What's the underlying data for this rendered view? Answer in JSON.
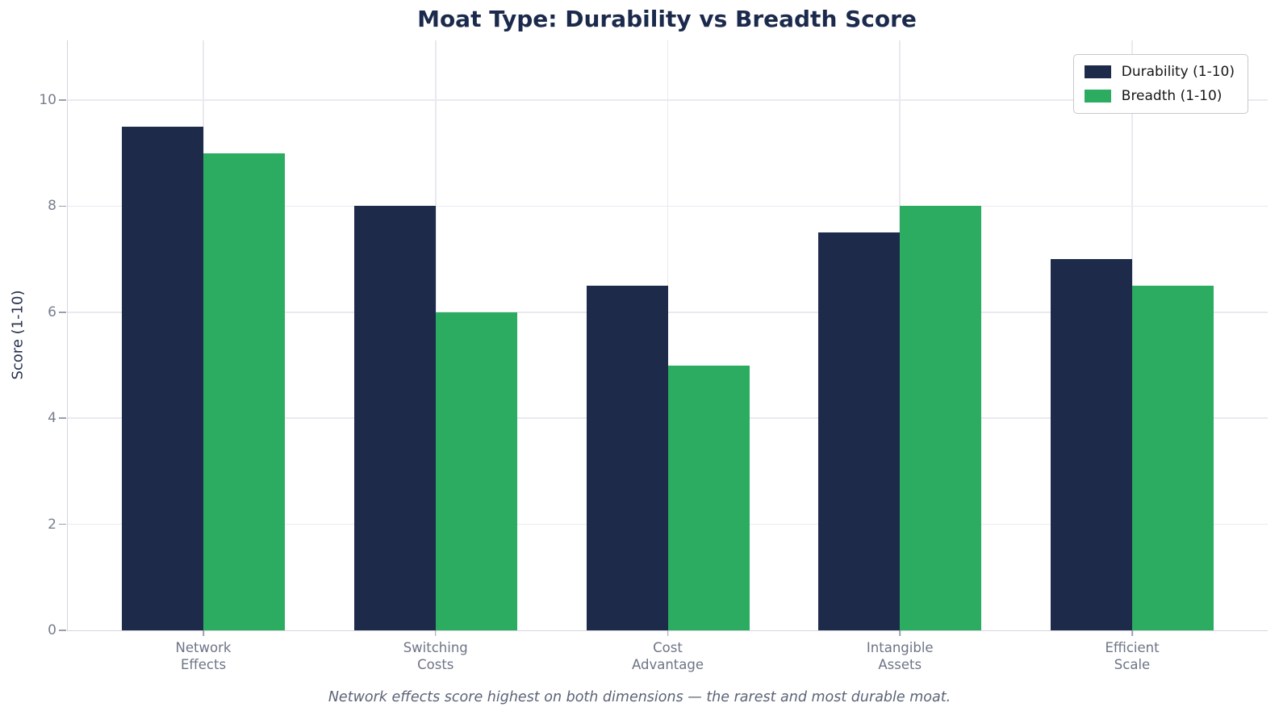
{
  "chart_data": {
    "type": "bar",
    "title": "Moat Type: Durability vs Breadth Score",
    "ylabel": "Score (1-10)",
    "xlabel": "",
    "caption": "Network effects score highest on both dimensions — the rarest and most durable moat.",
    "categories": [
      "Network\nEffects",
      "Switching\nCosts",
      "Cost\nAdvantage",
      "Intangible\nAssets",
      "Efficient\nScale"
    ],
    "series": [
      {
        "name": "Durability (1-10)",
        "color": "#1d2a4a",
        "values": [
          9.5,
          8,
          6.5,
          7.5,
          7
        ]
      },
      {
        "name": "Breadth (1-10)",
        "color": "#2bac61",
        "values": [
          9,
          6,
          5,
          8,
          6.5
        ]
      }
    ],
    "yticks": [
      0,
      2,
      4,
      6,
      8,
      10
    ],
    "ylim": [
      0,
      11.1
    ],
    "grid": true,
    "legend_position": "upper right",
    "background_color": "#ffffff",
    "gridline_color": "#e9e9f1"
  }
}
